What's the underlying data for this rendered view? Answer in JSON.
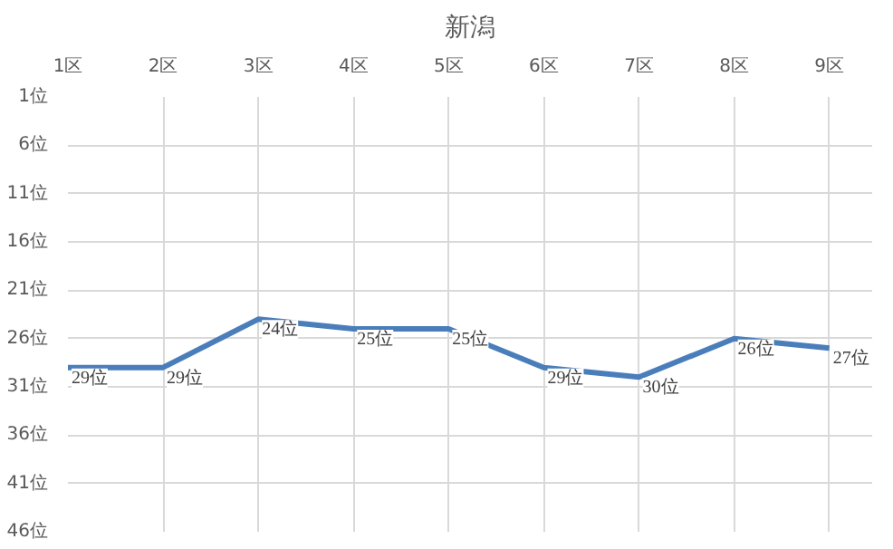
{
  "chart_data": {
    "type": "line",
    "title": "新潟",
    "categories": [
      "1区",
      "2区",
      "3区",
      "4区",
      "5区",
      "6区",
      "7区",
      "8区",
      "9区"
    ],
    "series": [
      {
        "color": "#4a7ebb",
        "values": [
          29,
          29,
          24,
          25,
          25,
          29,
          30,
          26,
          27
        ],
        "value_labels": [
          "29位",
          "29位",
          "24位",
          "25位",
          "25位",
          "29位",
          "30位",
          "26位",
          "27位"
        ]
      }
    ],
    "ylim": [
      46,
      1
    ],
    "yticks": [
      {
        "value": 1,
        "label": "1位"
      },
      {
        "value": 6,
        "label": "6位"
      },
      {
        "value": 11,
        "label": "11位"
      },
      {
        "value": 16,
        "label": "16位"
      },
      {
        "value": 21,
        "label": "21位"
      },
      {
        "value": 26,
        "label": "26位"
      },
      {
        "value": 31,
        "label": "31位"
      },
      {
        "value": 36,
        "label": "36位"
      },
      {
        "value": 41,
        "label": "41位"
      },
      {
        "value": 46,
        "label": "46位"
      }
    ],
    "grid": true,
    "marker": "none",
    "line_style": "solid"
  }
}
